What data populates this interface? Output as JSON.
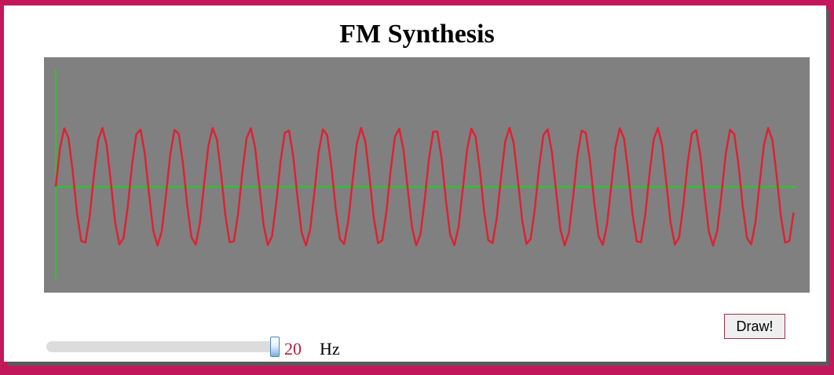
{
  "page": {
    "title": "FM Synthesis"
  },
  "controls": {
    "draw_label": "Draw!",
    "frequency_value": "20",
    "frequency_unit": "Hz",
    "frequency_slider_fraction": 1.0
  },
  "colors": {
    "background_border": "#c2185b",
    "plot_background": "#808080",
    "axis": "#22cc22",
    "wave": "#dd2233",
    "value_text": "#b0203c"
  },
  "chart_data": {
    "type": "line",
    "title": "",
    "xlabel": "",
    "ylabel": "",
    "grid": false,
    "legend": "none",
    "xlim": [
      0,
      1
    ],
    "ylim": [
      -1.45,
      1.45
    ],
    "series": [
      {
        "cycles": 20,
        "amplitude": 1.0,
        "x_end": 1.0
      }
    ]
  }
}
